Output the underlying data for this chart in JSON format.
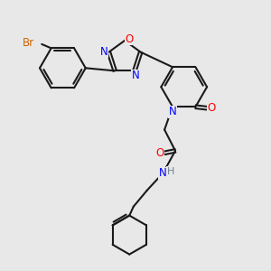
{
  "bg_color": "#e8e8e8",
  "bond_color": "#1a1a1a",
  "N_color": "#0000ff",
  "O_color": "#ff0000",
  "Br_color": "#cc6600",
  "H_color": "#708090",
  "bond_width": 1.5,
  "figsize": [
    3.0,
    3.0
  ],
  "dpi": 100,
  "xlim": [
    0,
    10
  ],
  "ylim": [
    0,
    10
  ]
}
